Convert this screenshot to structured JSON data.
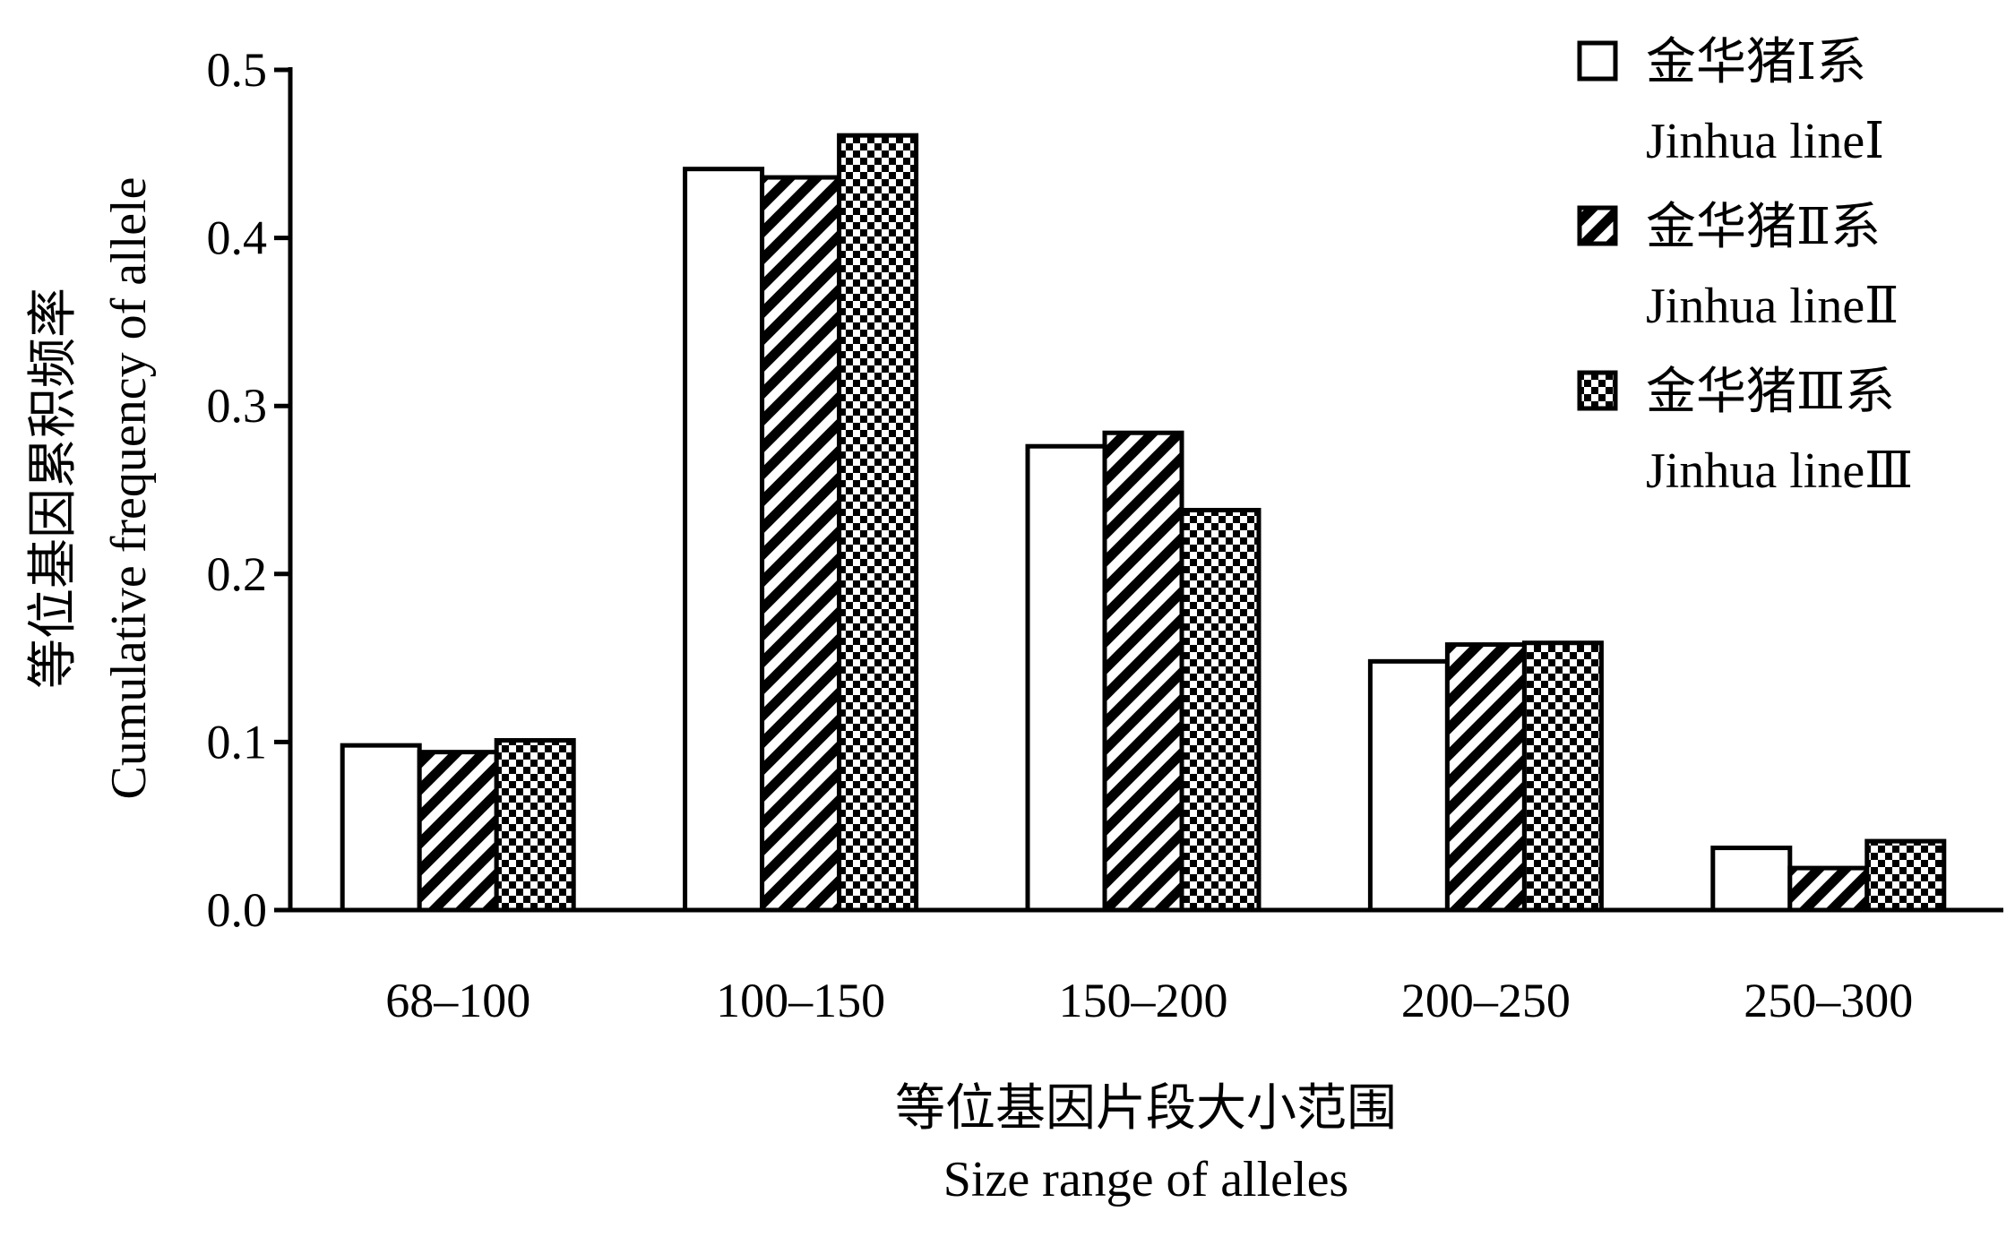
{
  "chart_data": {
    "type": "bar",
    "title": "",
    "xlabel_cn": "等位基因片段大小范围",
    "xlabel_en": "Size range of alleles",
    "ylabel_cn": "等位基因累积频率",
    "ylabel_en": "Cumulative frequency of allele",
    "categories": [
      "68–100",
      "100–150",
      "150–200",
      "200–250",
      "250–300"
    ],
    "ylim": [
      0,
      0.5
    ],
    "yticks": [
      {
        "value": 0.0,
        "label": "0.0"
      },
      {
        "value": 0.1,
        "label": "0.1"
      },
      {
        "value": 0.2,
        "label": "0.2"
      },
      {
        "value": 0.3,
        "label": "0.3"
      },
      {
        "value": 0.4,
        "label": "0.4"
      },
      {
        "value": 0.5,
        "label": "0.5"
      }
    ],
    "grid": false,
    "legend_position": "top-right",
    "series": [
      {
        "name_cn": "金华猪Ⅰ系",
        "name_en": "Jinhua lineⅠ",
        "pattern": "open",
        "values": [
          0.098,
          0.441,
          0.276,
          0.148,
          0.037
        ]
      },
      {
        "name_cn": "金华猪Ⅱ系",
        "name_en": "Jinhua lineⅡ",
        "pattern": "diagonal",
        "values": [
          0.094,
          0.436,
          0.284,
          0.158,
          0.025
        ]
      },
      {
        "name_cn": "金华猪Ⅲ系",
        "name_en": "Jinhua lineⅢ",
        "pattern": "checker",
        "values": [
          0.101,
          0.461,
          0.238,
          0.159,
          0.041
        ]
      }
    ]
  }
}
